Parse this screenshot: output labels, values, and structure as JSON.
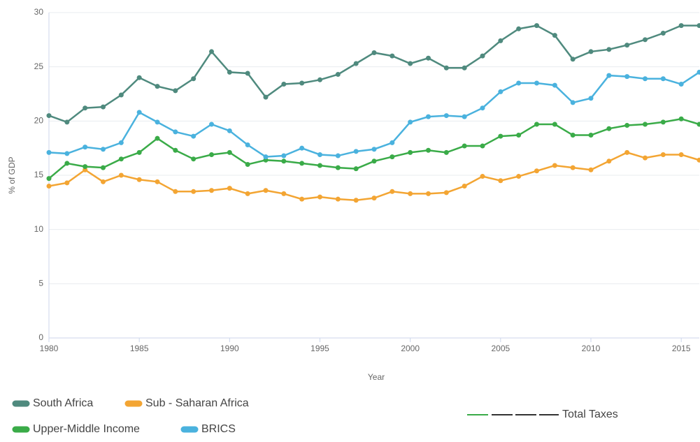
{
  "chart_data": {
    "type": "line",
    "x_label": "Year",
    "y_label": "% of GDP",
    "x": [
      1980,
      1981,
      1982,
      1983,
      1984,
      1985,
      1986,
      1987,
      1988,
      1989,
      1990,
      1991,
      1992,
      1993,
      1994,
      1995,
      1996,
      1997,
      1998,
      1999,
      2000,
      2001,
      2002,
      2003,
      2004,
      2005,
      2006,
      2007,
      2008,
      2009,
      2010,
      2011,
      2012,
      2013,
      2014,
      2015,
      2016
    ],
    "series": [
      {
        "name": "South Africa",
        "color": "#4f8a7e",
        "values": [
          20.5,
          19.9,
          21.2,
          21.3,
          22.4,
          24.0,
          23.2,
          22.8,
          23.9,
          26.4,
          24.5,
          24.4,
          22.2,
          23.4,
          23.5,
          23.8,
          24.3,
          25.3,
          26.3,
          26.0,
          25.3,
          25.8,
          24.9,
          24.9,
          26.0,
          27.4,
          28.5,
          28.8,
          27.9,
          25.7,
          26.4,
          26.6,
          27.0,
          27.5,
          28.1,
          28.8,
          28.8
        ]
      },
      {
        "name": "Sub - Saharan Africa",
        "color": "#f3a533",
        "values": [
          14.0,
          14.3,
          15.5,
          14.4,
          15.0,
          14.6,
          14.4,
          13.5,
          13.5,
          13.6,
          13.8,
          13.3,
          13.6,
          13.3,
          12.8,
          13.0,
          12.8,
          12.7,
          12.9,
          13.5,
          13.3,
          13.3,
          13.4,
          14.0,
          14.9,
          14.5,
          14.9,
          15.4,
          15.9,
          15.7,
          15.5,
          16.3,
          17.1,
          16.6,
          16.9,
          16.9,
          16.4
        ]
      },
      {
        "name": "Upper-Middle Income",
        "color": "#3aab48",
        "values": [
          14.7,
          16.1,
          15.8,
          15.7,
          16.5,
          17.1,
          18.4,
          17.3,
          16.5,
          16.9,
          17.1,
          16.0,
          16.4,
          16.3,
          16.1,
          15.9,
          15.7,
          15.6,
          16.3,
          16.7,
          17.1,
          17.3,
          17.1,
          17.7,
          17.7,
          18.6,
          18.7,
          19.7,
          19.7,
          18.7,
          18.7,
          19.3,
          19.6,
          19.7,
          19.9,
          20.2,
          19.7
        ]
      },
      {
        "name": "BRICS",
        "color": "#4ab2de",
        "values": [
          17.1,
          17.0,
          17.6,
          17.4,
          18.0,
          20.8,
          19.9,
          19.0,
          18.6,
          19.7,
          19.1,
          17.8,
          16.7,
          16.8,
          17.5,
          16.9,
          16.8,
          17.2,
          17.4,
          18.0,
          19.9,
          20.4,
          20.5,
          20.4,
          21.2,
          22.7,
          23.5,
          23.5,
          23.3,
          21.7,
          22.1,
          24.2,
          24.1,
          23.9,
          23.9,
          23.4,
          24.5
        ]
      }
    ],
    "xlim": [
      1980,
      2016
    ],
    "xticks": [
      1980,
      1985,
      1990,
      1995,
      2000,
      2005,
      2010,
      2015
    ],
    "ylim": [
      0,
      30
    ],
    "yticks": [
      0,
      5,
      10,
      15,
      20,
      25,
      30
    ],
    "grid": true,
    "legend_extra": "Total Taxes"
  }
}
